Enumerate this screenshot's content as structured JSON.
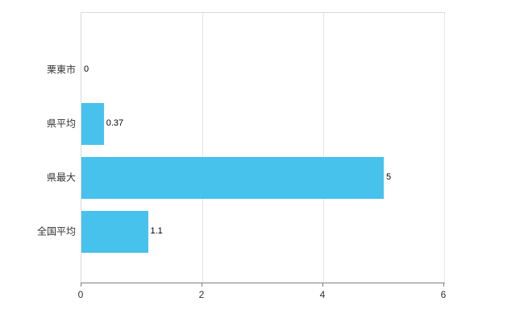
{
  "chart_data": {
    "type": "bar",
    "orientation": "horizontal",
    "title": "",
    "xlabel": "",
    "ylabel": "",
    "categories": [
      "栗東市",
      "県平均",
      "県最大",
      "全国平均"
    ],
    "values": [
      0,
      0.37,
      5,
      1.1
    ],
    "value_labels": [
      "0",
      "0.37",
      "5",
      "1.1"
    ],
    "xlim": [
      0,
      6
    ],
    "x_ticks": [
      0,
      2,
      4,
      6
    ],
    "grid": true,
    "legend": false,
    "bar_color": "#47c2ed",
    "axis_color": "#808080",
    "frame_color": "#d9d9d9",
    "gridline_color": "#e6e6e6"
  }
}
